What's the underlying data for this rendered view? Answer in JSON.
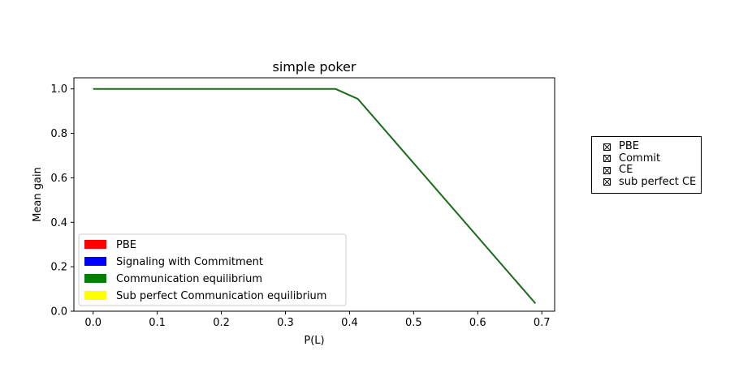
{
  "chart_data": {
    "type": "line",
    "title": "simple poker",
    "xlabel": "P(L)",
    "ylabel": "Mean gain",
    "xlim": [
      -0.03,
      0.72
    ],
    "ylim": [
      0.0,
      1.05
    ],
    "xticks": [
      0.0,
      0.1,
      0.2,
      0.3,
      0.4,
      0.5,
      0.6,
      0.7
    ],
    "xtick_labels": [
      "0.0",
      "0.1",
      "0.2",
      "0.3",
      "0.4",
      "0.5",
      "0.6",
      "0.7"
    ],
    "yticks": [
      0.0,
      0.2,
      0.4,
      0.6,
      0.8,
      1.0
    ],
    "ytick_labels": [
      "0.0",
      "0.2",
      "0.4",
      "0.6",
      "0.8",
      "1.0"
    ],
    "grid": false,
    "series": [
      {
        "name": "PBE",
        "color": "#ff0000",
        "x": [
          0.0,
          0.378,
          0.413,
          0.69
        ],
        "y": [
          1.0,
          1.0,
          0.955,
          0.035
        ]
      },
      {
        "name": "Signaling with Commitment",
        "color": "#0000ff",
        "x": [
          0.0,
          0.378,
          0.413,
          0.69
        ],
        "y": [
          1.0,
          1.0,
          0.955,
          0.035
        ]
      },
      {
        "name": "Communication equilibrium",
        "color": "#008000",
        "x": [
          0.0,
          0.378,
          0.413,
          0.69
        ],
        "y": [
          1.0,
          1.0,
          0.955,
          0.035
        ]
      },
      {
        "name": "Sub perfect Communication equilibrium",
        "color": "#ffff00",
        "x": [
          0.0,
          0.378,
          0.413,
          0.69
        ],
        "y": [
          1.0,
          1.0,
          0.955,
          0.035
        ]
      }
    ],
    "legend_placement": "lower-left",
    "legend": [
      {
        "label": "PBE",
        "color": "#ff0000"
      },
      {
        "label": "Signaling with Commitment",
        "color": "#0000ff"
      },
      {
        "label": "Communication equilibrium",
        "color": "#008000"
      },
      {
        "label": "Sub perfect Communication equilibrium",
        "color": "#ffff00"
      }
    ],
    "line_color": "#1a6b1a"
  },
  "side_legend": {
    "items": [
      "PBE",
      "Commit",
      "CE",
      "sub perfect CE"
    ]
  }
}
